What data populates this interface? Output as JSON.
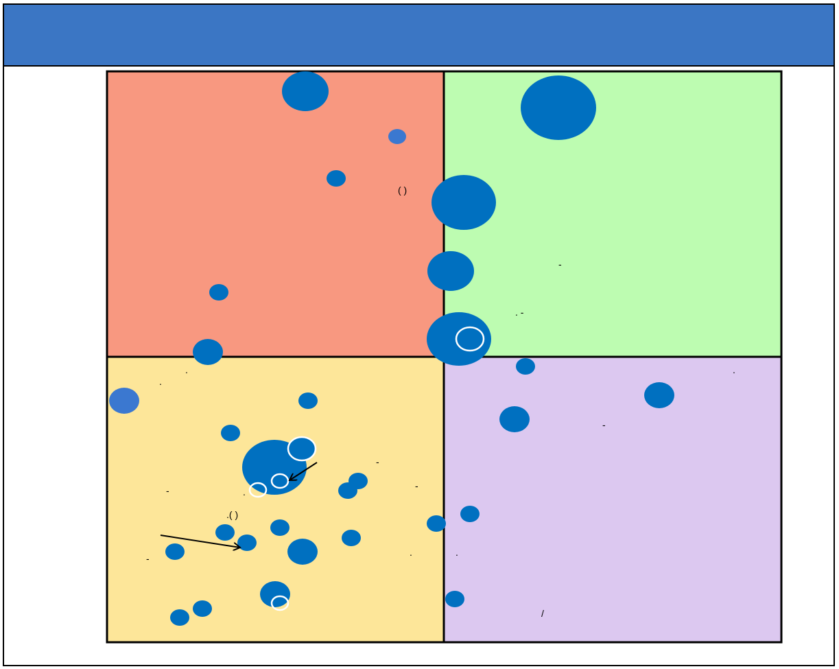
{
  "colors": {
    "title_bar": "#3B76C4",
    "quadrant_top_left": "#F89880",
    "quadrant_top_right": "#BDFCB1",
    "quadrant_bottom_left": "#FDE699",
    "quadrant_bottom_right": "#DCC8F0",
    "bubble": "#0070C0",
    "bubble_alt": "#3B78D0",
    "ring": "#FFFFFF",
    "line": "#000000"
  },
  "labels": [
    {
      "text": "(   )"
    },
    {
      "text": "-"
    },
    {
      "text": ".     -"
    },
    {
      "text": "."
    },
    {
      "text": "."
    },
    {
      "text": "."
    },
    {
      "text": "-"
    },
    {
      "text": "-"
    },
    {
      "text": "-"
    },
    {
      "text": "."
    },
    {
      "text": "-"
    },
    {
      "text": ".(   )"
    },
    {
      "text": "-"
    },
    {
      "text": "."
    },
    {
      "text": "."
    },
    {
      "text": "/"
    }
  ]
}
